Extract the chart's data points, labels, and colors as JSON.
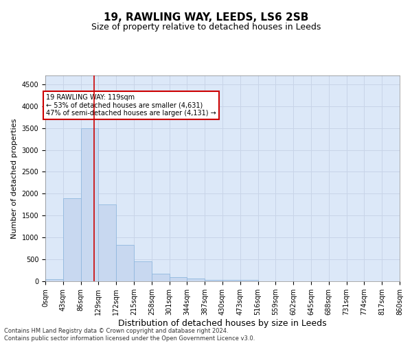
{
  "title": "19, RAWLING WAY, LEEDS, LS6 2SB",
  "subtitle": "Size of property relative to detached houses in Leeds",
  "xlabel": "Distribution of detached houses by size in Leeds",
  "ylabel": "Number of detached properties",
  "bin_edges": [
    0,
    43,
    86,
    129,
    172,
    215,
    258,
    301,
    344,
    387,
    430,
    473,
    516,
    559,
    602,
    645,
    688,
    731,
    774,
    817,
    860
  ],
  "bar_heights": [
    50,
    1900,
    3500,
    1750,
    830,
    450,
    175,
    100,
    60,
    35,
    30,
    30,
    0,
    0,
    0,
    0,
    0,
    0,
    0,
    0
  ],
  "bar_color": "#c8d8f0",
  "bar_edge_color": "#90b8de",
  "property_line_x": 119,
  "property_line_color": "#cc0000",
  "ylim": [
    0,
    4700
  ],
  "yticks": [
    0,
    500,
    1000,
    1500,
    2000,
    2500,
    3000,
    3500,
    4000,
    4500
  ],
  "annotation_text_line1": "19 RAWLING WAY: 119sqm",
  "annotation_text_line2": "← 53% of detached houses are smaller (4,631)",
  "annotation_text_line3": "47% of semi-detached houses are larger (4,131) →",
  "annotation_box_color": "#ffffff",
  "annotation_box_edge_color": "#cc0000",
  "grid_color": "#c8d4e8",
  "background_color": "#dce8f8",
  "footer_line1": "Contains HM Land Registry data © Crown copyright and database right 2024.",
  "footer_line2": "Contains public sector information licensed under the Open Government Licence v3.0.",
  "title_fontsize": 11,
  "subtitle_fontsize": 9,
  "tick_label_size": 7,
  "xlabel_fontsize": 9,
  "ylabel_fontsize": 8
}
